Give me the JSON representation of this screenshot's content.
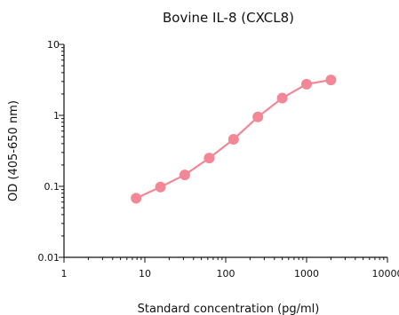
{
  "chart_data": {
    "type": "line",
    "title": "Bovine IL-8 (CXCL8)",
    "xlabel": "Standard concentration (pg/ml)",
    "ylabel": "OD (405-650 nm)",
    "x_scale": "log",
    "y_scale": "log",
    "xlim": [
      1,
      10000
    ],
    "ylim": [
      0.01,
      10
    ],
    "x_ticks": [
      1,
      10,
      100,
      1000,
      10000
    ],
    "x_tick_labels": [
      "1",
      "10",
      "100",
      "1000",
      "10000"
    ],
    "y_ticks": [
      0.01,
      0.1,
      1,
      10
    ],
    "y_tick_labels": [
      "0.01",
      "0.1",
      "1",
      "10"
    ],
    "grid": false,
    "series": [
      {
        "color": "#f48796",
        "x": [
          7.8,
          15.6,
          31.2,
          62.5,
          125,
          250,
          500,
          1000,
          2000
        ],
        "y": [
          0.068,
          0.098,
          0.145,
          0.25,
          0.46,
          0.95,
          1.75,
          2.75,
          3.15
        ]
      }
    ]
  }
}
